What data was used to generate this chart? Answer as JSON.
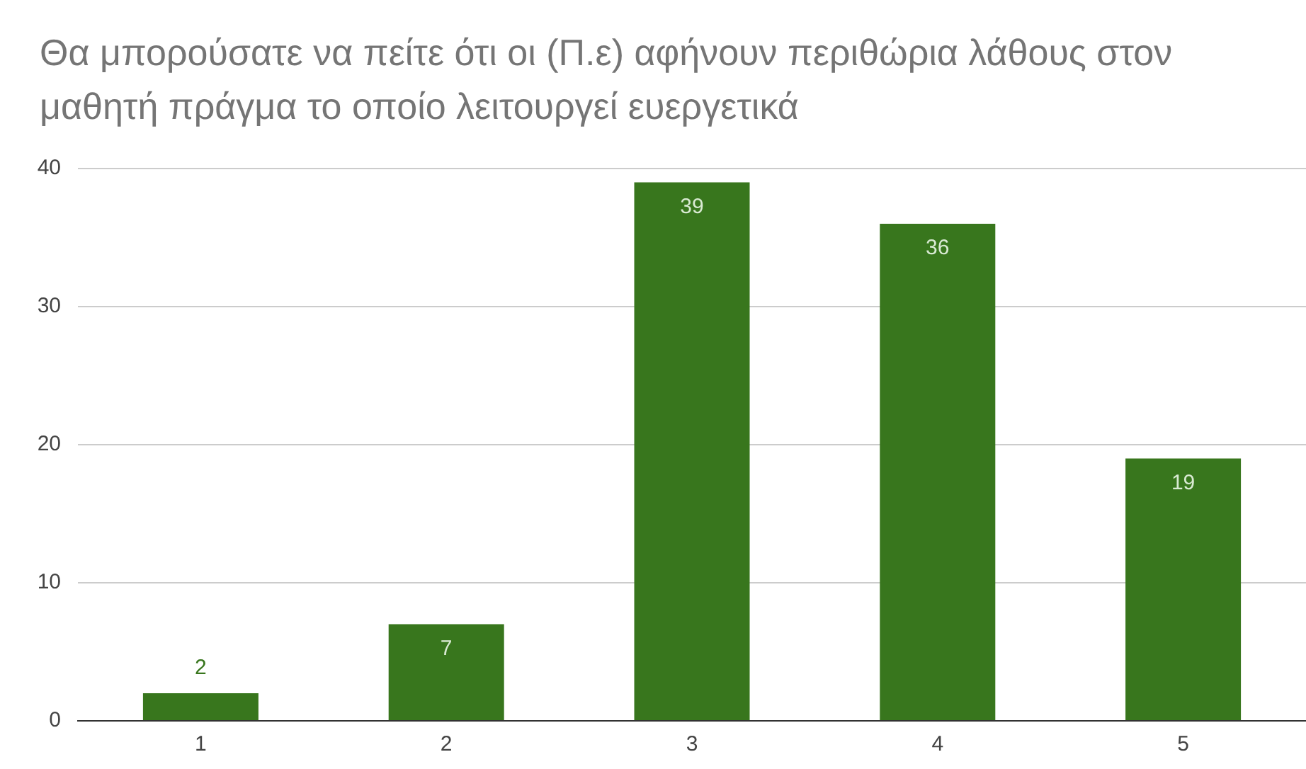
{
  "chart_data": {
    "type": "bar",
    "title": "Θα μπορούσατε να πείτε ότι οι (Π.ε) αφήνουν περιθώρια λάθους στον μαθητή πράγμα το οποίο λειτουργεί ευεργετικά",
    "categories": [
      "1",
      "2",
      "3",
      "4",
      "5"
    ],
    "values": [
      2,
      7,
      39,
      36,
      19
    ],
    "color": "#38761d",
    "ylim": [
      0,
      40
    ],
    "yticks": [
      0,
      10,
      20,
      30,
      40
    ],
    "grid": "y",
    "data_labels": true,
    "legend": false
  }
}
